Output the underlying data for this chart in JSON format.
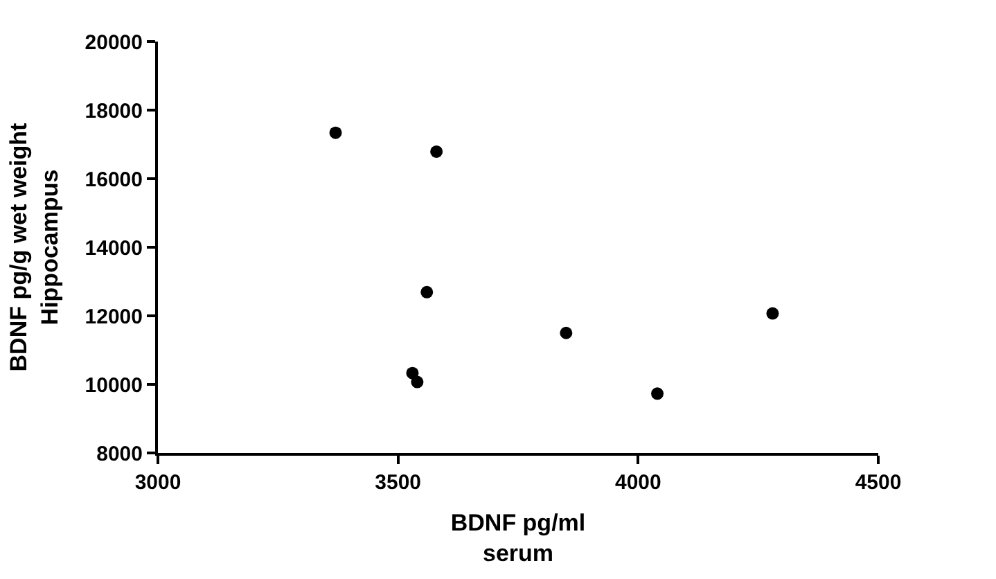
{
  "chart_data": {
    "type": "scatter",
    "xlabel": "BDNF pg/ml\nserum",
    "ylabel": "BDNF pg/g wet weight\nHippocampus",
    "x": [
      3370,
      3580,
      3560,
      3850,
      4280,
      3530,
      3540,
      4040
    ],
    "series": [
      {
        "color": "#000000",
        "values": [
          17340,
          16790,
          12690,
          11500,
          12070,
          10330,
          10070,
          9730
        ]
      }
    ],
    "xlim": [
      3000,
      4500
    ],
    "xticks": [
      3000,
      3500,
      4000,
      4500
    ],
    "ylim": [
      8000,
      20000
    ],
    "yticks": [
      8000,
      10000,
      12000,
      14000,
      16000,
      18000,
      20000
    ],
    "marker": "circle"
  }
}
